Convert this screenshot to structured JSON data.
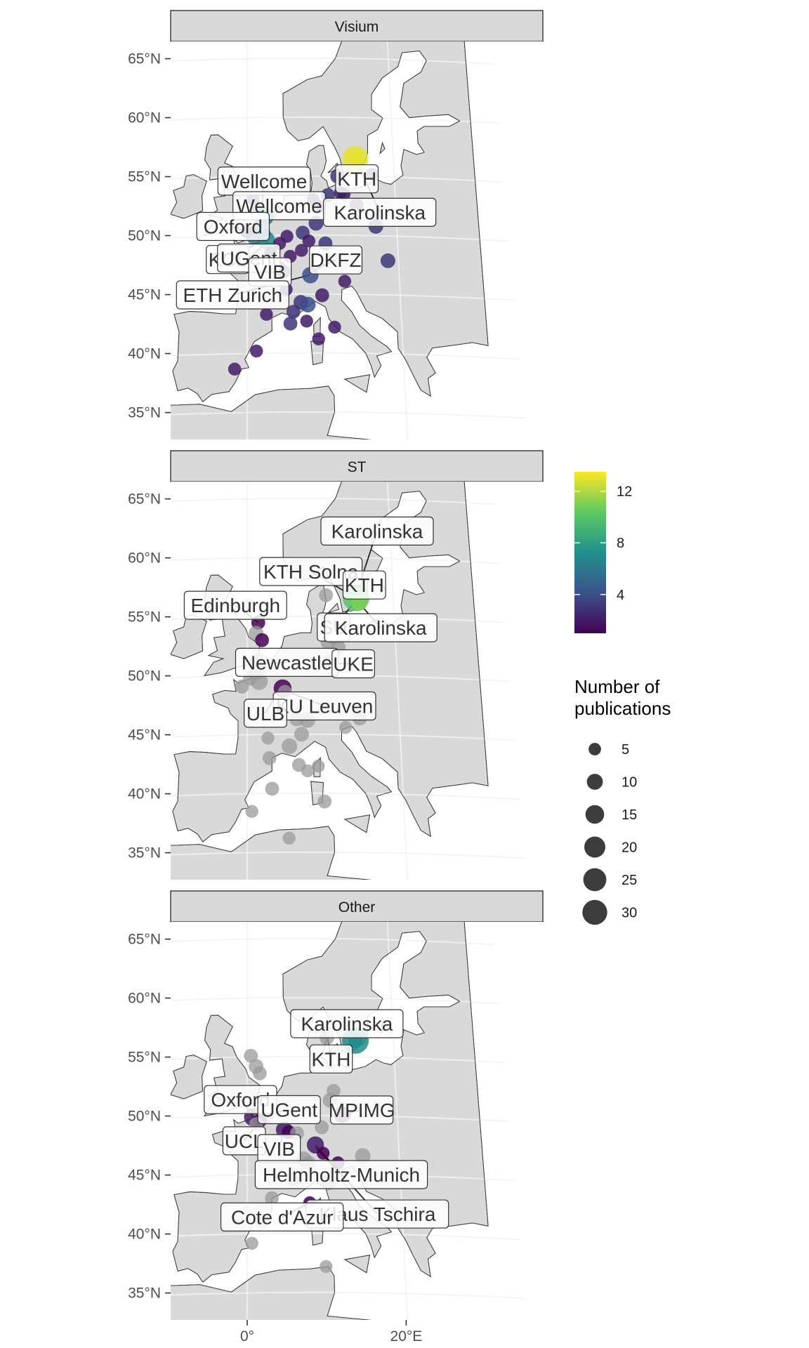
{
  "facets": [
    {
      "title": "Visium",
      "points": [
        {
          "lat": 56.5,
          "lon": 14.8,
          "n": 26,
          "c": 13
        },
        {
          "lat": 51.9,
          "lon": 1.3,
          "n": 6,
          "c": 4
        },
        {
          "lat": 51.6,
          "lon": 2.3,
          "n": 12,
          "c": 6
        },
        {
          "lat": 50.6,
          "lon": 1.6,
          "n": 9,
          "c": 5
        },
        {
          "lat": 49.9,
          "lon": 1.0,
          "n": 8,
          "c": 6
        },
        {
          "lat": 49.6,
          "lon": 2.5,
          "n": 10,
          "c": 7
        },
        {
          "lat": 50.1,
          "lon": 2.1,
          "n": 7,
          "c": 5
        },
        {
          "lat": 47.2,
          "lon": 4.2,
          "n": 6,
          "c": 4
        },
        {
          "lat": 46.9,
          "lon": 4.8,
          "n": 5,
          "c": 3
        },
        {
          "lat": 46.6,
          "lon": 8.3,
          "n": 8,
          "c": 4
        },
        {
          "lat": 45.4,
          "lon": 5.1,
          "n": 4,
          "c": 2
        },
        {
          "lat": 44.3,
          "lon": 7.0,
          "n": 6,
          "c": 3
        },
        {
          "lat": 43.5,
          "lon": 6.0,
          "n": 5,
          "c": 3
        },
        {
          "lat": 44.9,
          "lon": 9.8,
          "n": 5,
          "c": 2
        },
        {
          "lat": 44.1,
          "lon": 7.9,
          "n": 7,
          "c": 4
        },
        {
          "lat": 42.7,
          "lon": 7.7,
          "n": 4,
          "c": 2
        },
        {
          "lat": 42.5,
          "lon": 5.6,
          "n": 5,
          "c": 3
        },
        {
          "lat": 46.1,
          "lon": 12.8,
          "n": 4,
          "c": 2
        },
        {
          "lat": 48.2,
          "lon": 5.7,
          "n": 4,
          "c": 2
        },
        {
          "lat": 48.7,
          "lon": 7.2,
          "n": 4,
          "c": 2
        },
        {
          "lat": 49.3,
          "lon": 10.4,
          "n": 5,
          "c": 3
        },
        {
          "lat": 51.0,
          "lon": 9.2,
          "n": 6,
          "c": 3
        },
        {
          "lat": 52.4,
          "lon": 9.6,
          "n": 4,
          "c": 2
        },
        {
          "lat": 53.0,
          "lon": 8.9,
          "n": 4,
          "c": 2
        },
        {
          "lat": 53.4,
          "lon": 10.9,
          "n": 5,
          "c": 3
        },
        {
          "lat": 55.0,
          "lon": 12.3,
          "n": 6,
          "c": 3
        },
        {
          "lat": 53.6,
          "lon": 12.6,
          "n": 4,
          "c": 2
        },
        {
          "lat": 53.5,
          "lon": 13.1,
          "n": 4,
          "c": 2
        },
        {
          "lat": 55.2,
          "lon": 17.0,
          "n": 4,
          "c": 2
        },
        {
          "lat": 52.6,
          "lon": 14.7,
          "n": 5,
          "c": 3
        },
        {
          "lat": 50.8,
          "lon": 17.2,
          "n": 6,
          "c": 3
        },
        {
          "lat": 47.9,
          "lon": 18.6,
          "n": 6,
          "c": 3
        },
        {
          "lat": 49.9,
          "lon": 5.3,
          "n": 4,
          "c": 2
        },
        {
          "lat": 49.3,
          "lon": 4.3,
          "n": 4,
          "c": 2
        },
        {
          "lat": 48.5,
          "lon": 3.1,
          "n": 4,
          "c": 2
        },
        {
          "lat": 43.3,
          "lon": 2.5,
          "n": 4,
          "c": 2
        },
        {
          "lat": 40.2,
          "lon": 1.2,
          "n": 4,
          "c": 2
        },
        {
          "lat": 38.7,
          "lon": -1.6,
          "n": 4,
          "c": 2
        },
        {
          "lat": 41.2,
          "lon": 9.2,
          "n": 4,
          "c": 2
        },
        {
          "lat": 42.2,
          "lon": 11.3,
          "n": 4,
          "c": 2
        },
        {
          "lat": 50.2,
          "lon": 7.4,
          "n": 5,
          "c": 3
        },
        {
          "lat": 49.5,
          "lon": 8.2,
          "n": 4,
          "c": 2
        },
        {
          "lat": 53.1,
          "lon": 0.8,
          "n": 4,
          "c": 2
        },
        {
          "lat": 50.3,
          "lon": 0.0,
          "n": 4,
          "c": 2
        }
      ],
      "labels": [
        {
          "text": "Wellcome",
          "lat": 54.6,
          "lon": 2.3,
          "plat": 51.6,
          "plon": 1.9
        },
        {
          "text": "Wellcome",
          "lat": 52.5,
          "lon": 4.3,
          "plat": 51.0,
          "plon": 2.2
        },
        {
          "text": "Oxford",
          "lat": 50.8,
          "lon": -1.9,
          "plat": 50.0,
          "plon": 1.0
        },
        {
          "text": "KCL",
          "lat": 48.0,
          "lon": -2.6,
          "plat": 49.6,
          "plon": 2.0
        },
        {
          "text": "UGent",
          "lat": 48.1,
          "lon": 0.2,
          "plat": 49.5,
          "plon": 2.8
        },
        {
          "text": "VIB",
          "lat": 46.9,
          "lon": 3.0,
          "plat": 47.3,
          "plon": 4.5
        },
        {
          "text": "ETH Zurich",
          "lat": 45.0,
          "lon": -1.9,
          "plat": 46.6,
          "plon": 8.2
        },
        {
          "text": "DKFZ",
          "lat": 47.9,
          "lon": 11.7,
          "plat": 47.0,
          "plon": 8.7
        },
        {
          "text": "KTH",
          "lat": 54.8,
          "lon": 14.9,
          "plat": 56.3,
          "plon": 14.8
        },
        {
          "text": "Karolinska",
          "lat": 52.0,
          "lon": 17.8,
          "plat": 56.3,
          "plon": 15.0
        }
      ]
    },
    {
      "title": "ST",
      "points": [
        {
          "lat": 56.6,
          "lon": 14.9,
          "n": 28,
          "c": 10
        },
        {
          "lat": 56.2,
          "lon": 15.3,
          "n": 8,
          "c": 11
        },
        {
          "lat": 56.8,
          "lon": 10.8,
          "n": 5,
          "c": 0
        },
        {
          "lat": 55.9,
          "lon": 0.0,
          "n": 7,
          "c": 0
        },
        {
          "lat": 54.5,
          "lon": 1.5,
          "n": 5,
          "c": 1
        },
        {
          "lat": 53.6,
          "lon": 1.2,
          "n": 6,
          "c": 0
        },
        {
          "lat": 53.0,
          "lon": 2.0,
          "n": 5,
          "c": 1
        },
        {
          "lat": 51.1,
          "lon": 1.6,
          "n": 12,
          "c": 0
        },
        {
          "lat": 50.3,
          "lon": 1.2,
          "n": 8,
          "c": 0
        },
        {
          "lat": 49.8,
          "lon": 0.4,
          "n": 6,
          "c": 0
        },
        {
          "lat": 49.5,
          "lon": 1.6,
          "n": 9,
          "c": 0
        },
        {
          "lat": 48.9,
          "lon": 4.7,
          "n": 10,
          "c": 1
        },
        {
          "lat": 48.6,
          "lon": 5.0,
          "n": 5,
          "c": 0
        },
        {
          "lat": 51.2,
          "lon": 11.2,
          "n": 7,
          "c": 0
        },
        {
          "lat": 52.8,
          "lon": 10.9,
          "n": 6,
          "c": 0
        },
        {
          "lat": 53.2,
          "lon": 11.7,
          "n": 5,
          "c": 0
        },
        {
          "lat": 52.4,
          "lon": 12.3,
          "n": 5,
          "c": 0
        },
        {
          "lat": 46.3,
          "lon": 6.5,
          "n": 6,
          "c": 0
        },
        {
          "lat": 46.2,
          "lon": 7.9,
          "n": 7,
          "c": 0
        },
        {
          "lat": 45.0,
          "lon": 7.1,
          "n": 6,
          "c": 0
        },
        {
          "lat": 44.0,
          "lon": 5.5,
          "n": 7,
          "c": 0
        },
        {
          "lat": 43.0,
          "lon": 2.9,
          "n": 5,
          "c": 0
        },
        {
          "lat": 42.4,
          "lon": 6.7,
          "n": 5,
          "c": 0
        },
        {
          "lat": 41.9,
          "lon": 7.8,
          "n": 4,
          "c": 0
        },
        {
          "lat": 42.3,
          "lon": 9.2,
          "n": 4,
          "c": 0
        },
        {
          "lat": 40.4,
          "lon": 3.2,
          "n": 5,
          "c": 0
        },
        {
          "lat": 39.3,
          "lon": 9.9,
          "n": 5,
          "c": 0
        },
        {
          "lat": 38.5,
          "lon": 0.6,
          "n": 4,
          "c": 0
        },
        {
          "lat": 36.2,
          "lon": 5.3,
          "n": 4,
          "c": 0
        },
        {
          "lat": 45.6,
          "lon": 12.9,
          "n": 4,
          "c": 0
        },
        {
          "lat": 46.4,
          "lon": 14.8,
          "n": 6,
          "c": 0
        },
        {
          "lat": 44.7,
          "lon": 2.7,
          "n": 4,
          "c": 0
        },
        {
          "lat": 49.1,
          "lon": -0.7,
          "n": 5,
          "c": 0
        }
      ],
      "labels": [
        {
          "text": "Karolinska",
          "lat": 62.3,
          "lon": 18.2,
          "plat": 57.0,
          "plon": 15.0
        },
        {
          "text": "KTH Solna",
          "lat": 58.8,
          "lon": 8.8,
          "plat": 56.8,
          "plon": 14.3
        },
        {
          "text": "KTH",
          "lat": 57.7,
          "lon": 16.1,
          "plat": 56.5,
          "plon": 15.0
        },
        {
          "text": "Edinburgh",
          "lat": 56.0,
          "lon": -1.6,
          "plat": 54.5,
          "plon": 1.5
        },
        {
          "text": "SU",
          "lat": 54.1,
          "lon": 11.7,
          "plat": 56.3,
          "plon": 14.8
        },
        {
          "text": "Karolinska",
          "lat": 54.1,
          "lon": 18.1,
          "plat": 56.3,
          "plon": 15.1
        },
        {
          "text": "Newcastle",
          "lat": 51.1,
          "lon": 5.3,
          "plat": 51.0,
          "plon": 1.8
        },
        {
          "text": "UKE",
          "lat": 51.0,
          "lon": 14.2,
          "plat": 51.0,
          "plon": 11.5
        },
        {
          "text": "KU Leuven",
          "lat": 47.4,
          "lon": 10.2,
          "plat": 48.7,
          "plon": 5.0
        },
        {
          "text": "ULB",
          "lat": 46.8,
          "lon": 2.4,
          "plat": 48.0,
          "plon": 3.5
        }
      ]
    },
    {
      "title": "Other",
      "points": [
        {
          "lat": 56.4,
          "lon": 14.8,
          "n": 28,
          "c": 7
        },
        {
          "lat": 56.6,
          "lon": 10.9,
          "n": 6,
          "c": 0
        },
        {
          "lat": 54.2,
          "lon": 1.2,
          "n": 6,
          "c": 0
        },
        {
          "lat": 53.6,
          "lon": 1.7,
          "n": 5,
          "c": 0
        },
        {
          "lat": 52.1,
          "lon": 11.6,
          "n": 5,
          "c": 0
        },
        {
          "lat": 51.3,
          "lon": 11.1,
          "n": 6,
          "c": 0
        },
        {
          "lat": 50.1,
          "lon": 12.7,
          "n": 9,
          "c": 2
        },
        {
          "lat": 49.9,
          "lon": 0.8,
          "n": 11,
          "c": 2
        },
        {
          "lat": 50.2,
          "lon": 2.3,
          "n": 15,
          "c": 0
        },
        {
          "lat": 49.6,
          "lon": 1.7,
          "n": 5,
          "c": 1
        },
        {
          "lat": 49.3,
          "lon": 1.2,
          "n": 5,
          "c": 0
        },
        {
          "lat": 48.8,
          "lon": 4.9,
          "n": 8,
          "c": 2
        },
        {
          "lat": 48.6,
          "lon": 5.5,
          "n": 5,
          "c": 1
        },
        {
          "lat": 48.5,
          "lon": 6.6,
          "n": 5,
          "c": 0
        },
        {
          "lat": 49.0,
          "lon": 9.9,
          "n": 5,
          "c": 0
        },
        {
          "lat": 47.5,
          "lon": 9.0,
          "n": 9,
          "c": 2
        },
        {
          "lat": 46.8,
          "lon": 10.0,
          "n": 4,
          "c": 1
        },
        {
          "lat": 46.3,
          "lon": 7.4,
          "n": 7,
          "c": 0
        },
        {
          "lat": 46.0,
          "lon": 8.1,
          "n": 5,
          "c": 0
        },
        {
          "lat": 46.6,
          "lon": 15.2,
          "n": 7,
          "c": 0
        },
        {
          "lat": 46.0,
          "lon": 11.9,
          "n": 4,
          "c": 1
        },
        {
          "lat": 44.7,
          "lon": 6.1,
          "n": 7,
          "c": 0
        },
        {
          "lat": 44.3,
          "lon": 10.6,
          "n": 6,
          "c": 0
        },
        {
          "lat": 43.0,
          "lon": 3.2,
          "n": 5,
          "c": 0
        },
        {
          "lat": 42.6,
          "lon": 8.1,
          "n": 4,
          "c": 1
        },
        {
          "lat": 41.0,
          "lon": 1.9,
          "n": 5,
          "c": 0
        },
        {
          "lat": 39.2,
          "lon": 0.6,
          "n": 4,
          "c": 0
        },
        {
          "lat": 37.2,
          "lon": 10.0,
          "n": 4,
          "c": 0
        },
        {
          "lat": 55.1,
          "lon": 0.5,
          "n": 5,
          "c": 0
        }
      ],
      "labels": [
        {
          "text": "Karolinska",
          "lat": 57.8,
          "lon": 13.7,
          "plat": 56.4,
          "plon": 14.8
        },
        {
          "text": "KTH",
          "lat": 54.8,
          "lon": 11.4,
          "plat": 56.6,
          "plon": 11.0
        },
        {
          "text": "Oxford",
          "lat": 51.4,
          "lon": -0.9,
          "plat": 49.9,
          "plon": 0.8
        },
        {
          "text": "UGent",
          "lat": 50.5,
          "lon": 5.6,
          "plat": 50.1,
          "plon": 2.4
        },
        {
          "text": "MPIMG",
          "lat": 50.5,
          "lon": 15.3,
          "plat": 50.1,
          "plon": 12.7
        },
        {
          "text": "UCL",
          "lat": 47.9,
          "lon": -0.4,
          "plat": 49.5,
          "plon": 1.6
        },
        {
          "text": "VIB",
          "lat": 47.2,
          "lon": 4.2,
          "plat": 48.8,
          "plon": 4.9
        },
        {
          "text": "Helmholtz-Munich",
          "lat": 45.0,
          "lon": 12.3,
          "plat": 47.3,
          "plon": 9.0
        },
        {
          "text": "Klaus Tschira",
          "lat": 41.7,
          "lon": 16.8,
          "plat": 47.5,
          "plon": 9.0
        },
        {
          "text": "Cote d'Azur",
          "lat": 41.4,
          "lon": 4.5,
          "plat": 42.6,
          "plon": 8.1
        }
      ]
    }
  ],
  "y_axis_labels": [
    "65°N",
    "60°N",
    "55°N",
    "50°N",
    "45°N",
    "40°N",
    "35°N"
  ],
  "y_axis_values": [
    65,
    60,
    55,
    50,
    45,
    40,
    35
  ],
  "x_axis_labels": [
    "0°",
    "20°E"
  ],
  "x_axis_values": [
    0,
    20
  ],
  "colorbar": {
    "ticks": [
      12,
      8,
      4
    ],
    "range": [
      1,
      13.5
    ],
    "palette": [
      "#440154",
      "#3b528b",
      "#21918c",
      "#5ec962",
      "#fde725"
    ]
  },
  "size_legend": {
    "title_line1": "Number of",
    "title_line2": "publications",
    "values": [
      5,
      10,
      15,
      20,
      25,
      30
    ],
    "labels": [
      "5",
      "10",
      "15",
      "20",
      "25",
      "30"
    ]
  },
  "colors": {
    "panel_bg": "#e6e6e6",
    "land": "#d9d9d9",
    "sea": "#ffffff",
    "strip": "#d9d9d9",
    "grey_point": "#9a9a9a"
  }
}
